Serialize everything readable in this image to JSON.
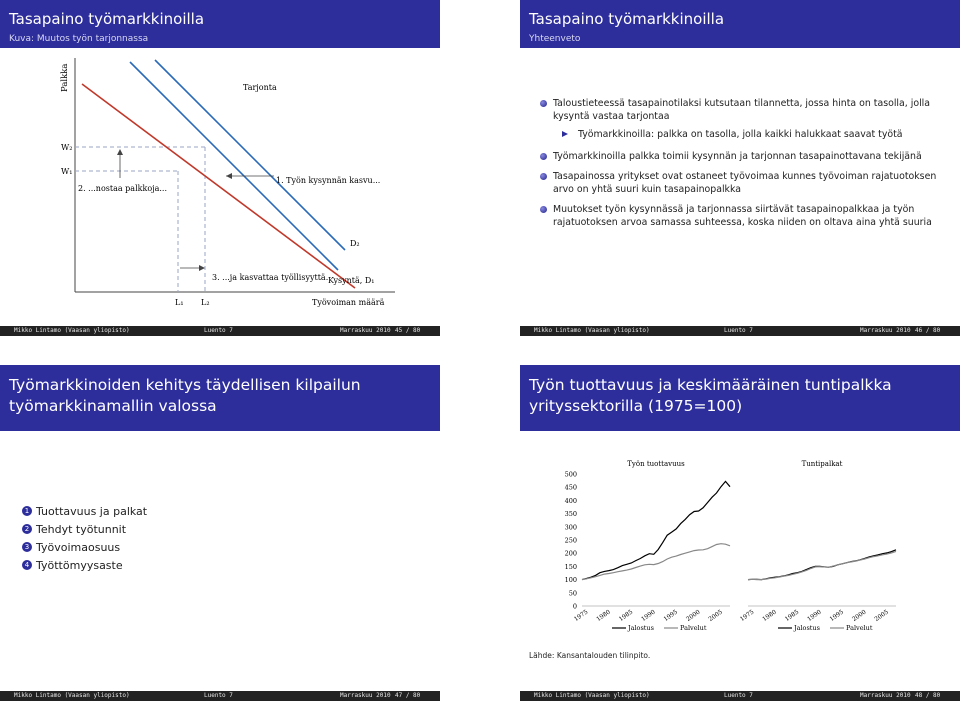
{
  "footer": {
    "author": "Mikko Lintamo (Vaasan yliopisto)",
    "lecture": "Luento 7",
    "date": "Marraskuu 2010"
  },
  "slides": [
    {
      "title": "Tasapaino työmarkkinoilla",
      "subtitle": "Kuva: Muutos työn tarjonnassa",
      "page": "45 / 80",
      "diagram": {
        "ylabel": "Palkka",
        "xlabel": "Työvoiman määrä",
        "supply_label": "Tarjonta",
        "d2_label": "D₂",
        "d1_label": "Kysyntä, D₁",
        "w2": "W₂",
        "w1": "W₁",
        "l1": "L₁",
        "l2": "L₂",
        "step1": "1. Työn kysynnän kasvu...",
        "step2": "2. ...nostaa palkkoja...",
        "step3": "3. ...ja kasvattaa työllisyyttä."
      }
    },
    {
      "title": "Tasapaino työmarkkinoilla",
      "subtitle": "Yhteenveto",
      "page": "46 / 80",
      "bullets": [
        {
          "text": "Taloustieteessä tasapainotilaksi kutsutaan tilannetta, jossa hinta on tasolla, jolla kysyntä vastaa tarjontaa",
          "sub": "Työmarkkinoilla: palkka on tasolla, jolla kaikki halukkaat saavat työtä"
        },
        {
          "text": "Työmarkkinoilla palkka toimii kysynnän ja tarjonnan tasapainottavana tekijänä"
        },
        {
          "text": "Tasapainossa yritykset ovat ostaneet työvoimaa kunnes työvoiman rajatuotoksen arvo on yhtä suuri kuin tasapainopalkka"
        },
        {
          "text": "Muutokset työn kysynnässä ja tarjonnassa siirtävät tasapainopalkkaa ja työn rajatuotoksen arvoa samassa suhteessa, koska niiden on oltava aina yhtä suuria"
        }
      ]
    },
    {
      "title": "Työmarkkinoiden kehitys täydellisen kilpailun työmarkkinamallin valossa",
      "page": "47 / 80",
      "items": [
        "Tuottavuus ja palkat",
        "Tehdyt työtunnit",
        "Työvoimaosuus",
        "Työttömyysaste"
      ]
    },
    {
      "title": "Työn tuottavuus ja keskimääräinen tuntipalkka yrityssektorilla (1975=100)",
      "page": "48 / 80",
      "source": "Lähde: Kansantalouden tilinpito."
    }
  ],
  "chart_data": [
    {
      "type": "line",
      "title": "Työn tuottavuus",
      "x": [
        1975,
        1976,
        1977,
        1978,
        1979,
        1980,
        1981,
        1982,
        1983,
        1984,
        1985,
        1986,
        1987,
        1988,
        1989,
        1990,
        1991,
        1992,
        1993,
        1994,
        1995,
        1996,
        1997,
        1998,
        1999,
        2000,
        2001,
        2002,
        2003,
        2004,
        2005,
        2006,
        2007,
        2008
      ],
      "xticks": [
        "1975",
        "1980",
        "1985",
        "1990",
        "1995",
        "2000",
        "2005"
      ],
      "ylim": [
        0,
        500
      ],
      "yticks": [
        0,
        50,
        100,
        150,
        200,
        250,
        300,
        350,
        400,
        450,
        500
      ],
      "legend": [
        "Jalostus",
        "Palvelut"
      ],
      "series": [
        {
          "name": "Jalostus",
          "color": "#000000",
          "values": [
            100,
            104,
            109,
            116,
            126,
            131,
            134,
            138,
            145,
            153,
            158,
            163,
            172,
            180,
            190,
            198,
            196,
            214,
            240,
            268,
            280,
            292,
            312,
            328,
            346,
            358,
            360,
            372,
            392,
            412,
            428,
            452,
            472,
            452
          ]
        },
        {
          "name": "Palvelut",
          "color": "#888888",
          "values": [
            100,
            103,
            107,
            111,
            116,
            121,
            123,
            126,
            130,
            133,
            136,
            140,
            146,
            151,
            156,
            158,
            157,
            161,
            168,
            178,
            185,
            189,
            195,
            200,
            205,
            210,
            212,
            213,
            217,
            225,
            233,
            236,
            234,
            228
          ]
        }
      ]
    },
    {
      "type": "line",
      "title": "Tuntipalkat",
      "x": [
        1975,
        1976,
        1977,
        1978,
        1979,
        1980,
        1981,
        1982,
        1983,
        1984,
        1985,
        1986,
        1987,
        1988,
        1989,
        1990,
        1991,
        1992,
        1993,
        1994,
        1995,
        1996,
        1997,
        1998,
        1999,
        2000,
        2001,
        2002,
        2003,
        2004,
        2005,
        2006,
        2007,
        2008
      ],
      "xticks": [
        "1975",
        "1980",
        "1985",
        "1990",
        "1995",
        "2000",
        "2005"
      ],
      "legend": [
        "Jalostus",
        "Palvelut"
      ],
      "series": [
        {
          "name": "Jalostus",
          "color": "#000000",
          "values": [
            100,
            101,
            101,
            100,
            103,
            107,
            109,
            111,
            114,
            118,
            123,
            126,
            131,
            138,
            145,
            150,
            150,
            148,
            147,
            150,
            156,
            160,
            164,
            168,
            171,
            175,
            180,
            186,
            190,
            194,
            198,
            201,
            206,
            213
          ]
        },
        {
          "name": "Palvelut",
          "color": "#888888",
          "values": [
            100,
            101,
            100,
            100,
            102,
            105,
            107,
            110,
            113,
            116,
            120,
            124,
            129,
            135,
            142,
            148,
            149,
            148,
            147,
            151,
            156,
            160,
            164,
            167,
            170,
            174,
            178,
            183,
            187,
            190,
            194,
            197,
            201,
            207
          ]
        }
      ]
    }
  ],
  "colors": {
    "header": "#2d2d9c",
    "footer": "#222222",
    "supply": "#c0392b",
    "demand": "#2a6ab8"
  }
}
